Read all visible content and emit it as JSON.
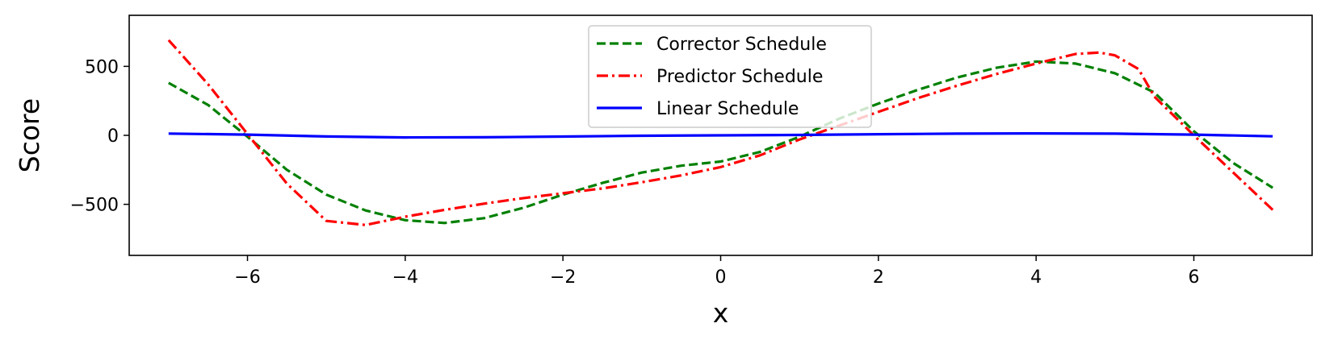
{
  "chart_data": {
    "type": "line",
    "xlabel": "x",
    "ylabel": "Score",
    "xlim": [
      -7.5,
      7.5
    ],
    "ylim": [
      -870,
      870
    ],
    "xticks": [
      {
        "value": -6,
        "label": "−6"
      },
      {
        "value": -4,
        "label": "−4"
      },
      {
        "value": -2,
        "label": "−2"
      },
      {
        "value": 0,
        "label": "0"
      },
      {
        "value": 2,
        "label": "2"
      },
      {
        "value": 4,
        "label": "4"
      },
      {
        "value": 6,
        "label": "6"
      }
    ],
    "yticks": [
      {
        "value": -500,
        "label": "−500"
      },
      {
        "value": 0,
        "label": "0"
      },
      {
        "value": 500,
        "label": "500"
      }
    ],
    "grid": false,
    "legend_position": "upper center",
    "series": [
      {
        "name": "Corrector Schedule",
        "color": "#008000",
        "dash": "dashed",
        "x": [
          -7,
          -6.5,
          -6,
          -5.5,
          -5,
          -4.5,
          -4,
          -3.5,
          -3,
          -2.5,
          -2,
          -1.5,
          -1,
          -0.5,
          0,
          0.5,
          1,
          1.5,
          2,
          2.5,
          3,
          3.5,
          4,
          4.5,
          5,
          5.5,
          6,
          6.5,
          7
        ],
        "y": [
          380,
          220,
          -10,
          -250,
          -430,
          -545,
          -615,
          -635,
          -600,
          -525,
          -430,
          -345,
          -270,
          -220,
          -190,
          -120,
          -10,
          120,
          230,
          330,
          420,
          490,
          535,
          520,
          450,
          310,
          30,
          -200,
          -380
        ]
      },
      {
        "name": "Predictor Schedule",
        "color": "#ff0000",
        "dash": "dashdot",
        "x": [
          -7,
          -6.5,
          -6,
          -5.5,
          -5,
          -4.5,
          -4,
          -3.5,
          -3,
          -2.5,
          -2,
          -1.5,
          -1,
          -0.5,
          0,
          0.5,
          1,
          1.5,
          2,
          2.5,
          3,
          3.5,
          4,
          4.5,
          4.8,
          5,
          5.3,
          5.5,
          6,
          6.5,
          7
        ],
        "y": [
          690,
          370,
          10,
          -350,
          -620,
          -650,
          -590,
          -540,
          -495,
          -455,
          -420,
          -385,
          -340,
          -290,
          -230,
          -145,
          -30,
          70,
          170,
          270,
          360,
          445,
          520,
          590,
          600,
          580,
          480,
          280,
          0,
          -270,
          -540
        ]
      },
      {
        "name": "Linear Schedule",
        "color": "#0000ff",
        "dash": "solid",
        "x": [
          -7,
          -6,
          -5,
          -4,
          -3,
          -2,
          -1,
          0,
          1,
          2,
          3,
          4,
          5,
          6,
          7
        ],
        "y": [
          13,
          5,
          -8,
          -15,
          -14,
          -9,
          -3,
          0,
          3,
          8,
          12,
          14,
          12,
          5,
          -7
        ]
      }
    ]
  }
}
